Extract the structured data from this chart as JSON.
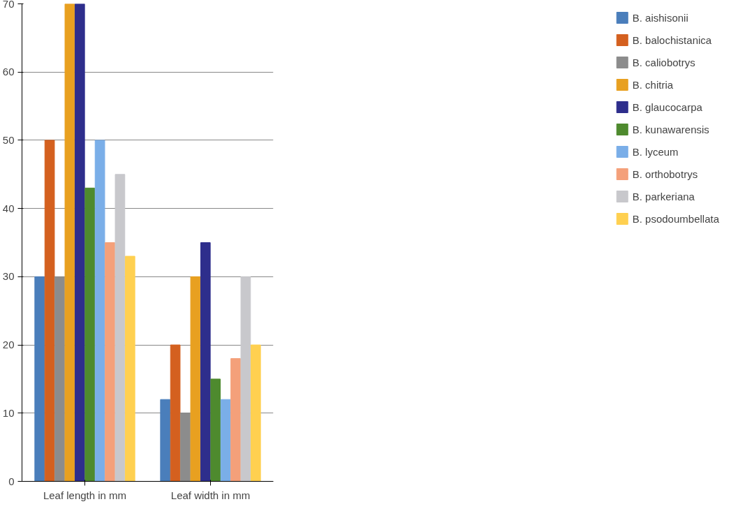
{
  "chart_data": {
    "type": "bar",
    "categories": [
      "Leaf length in mm",
      "Leaf width in mm"
    ],
    "series": [
      {
        "name": "B. aishisonii",
        "color": "#4a7ebb",
        "values": [
          30,
          12
        ]
      },
      {
        "name": "B. balochistanica",
        "color": "#d4601f",
        "values": [
          50,
          20
        ]
      },
      {
        "name": "B. caliobotrys",
        "color": "#8c8c8c",
        "values": [
          30,
          10
        ]
      },
      {
        "name": "B. chitria",
        "color": "#e8a020",
        "values": [
          70,
          30
        ]
      },
      {
        "name": "B. glaucocarpa",
        "color": "#2e2e8c",
        "values": [
          70,
          35
        ]
      },
      {
        "name": "B. kunawarensis",
        "color": "#4e8a2e",
        "values": [
          43,
          15
        ]
      },
      {
        "name": "B. lyceum",
        "color": "#7aaee8",
        "values": [
          50,
          12
        ]
      },
      {
        "name": "B. orthobotrys",
        "color": "#f4a07a",
        "values": [
          35,
          18
        ]
      },
      {
        "name": "B. parkeriana",
        "color": "#c8c8cc",
        "values": [
          45,
          30
        ]
      },
      {
        "name": "B. psodoumbellata",
        "color": "#ffd050",
        "values": [
          33,
          20
        ]
      }
    ],
    "ylim": [
      0,
      70
    ],
    "yticks": [
      0,
      10,
      20,
      30,
      40,
      50,
      60,
      70
    ],
    "grid": "y",
    "legend": "right"
  }
}
